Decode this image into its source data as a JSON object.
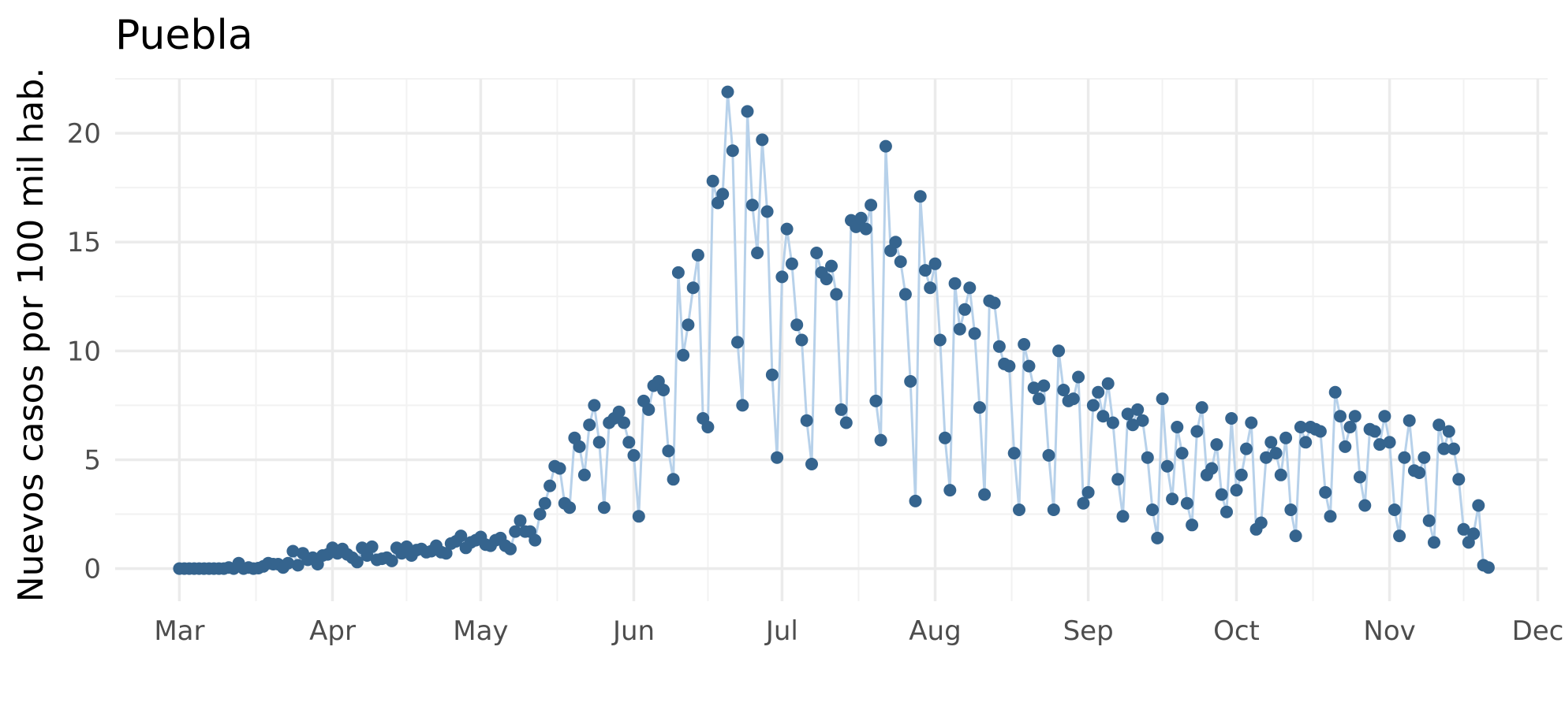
{
  "chart_data": {
    "type": "line",
    "title": "Puebla",
    "xlabel": "",
    "ylabel": "Nuevos casos por 100 mil hab.",
    "x_range": [
      "2020-02-17",
      "2020-12-03"
    ],
    "xlim_label": "Mar–Dec 2020",
    "ylim": [
      -1.5,
      22.5
    ],
    "x_tick_labels": [
      "Mar",
      "Apr",
      "May",
      "Jun",
      "Jul",
      "Aug",
      "Sep",
      "Oct",
      "Nov",
      "Dec"
    ],
    "x_tick_dates": [
      "2020-03-01",
      "2020-04-01",
      "2020-05-01",
      "2020-06-01",
      "2020-07-01",
      "2020-08-01",
      "2020-09-01",
      "2020-10-01",
      "2020-11-01",
      "2020-12-01"
    ],
    "y_ticks": [
      0,
      5,
      10,
      15,
      20
    ],
    "grid": true,
    "legend": "none",
    "colors": {
      "line": "#b7d1ea",
      "points": "#35648e",
      "grid_major": "#ebebeb",
      "grid_minor": "#f2f2f2"
    },
    "series": [
      {
        "start_date": "2020-03-01",
        "interval": "daily",
        "values": [
          0,
          0,
          0,
          0,
          0,
          0,
          0,
          0,
          0,
          0,
          0.05,
          0,
          0.25,
          0,
          0.05,
          0,
          0.02,
          0.1,
          0.25,
          0.2,
          0.2,
          0.05,
          0.25,
          0.8,
          0.15,
          0.7,
          0.4,
          0.5,
          0.2,
          0.6,
          0.65,
          0.95,
          0.7,
          0.9,
          0.65,
          0.5,
          0.3,
          0.95,
          0.6,
          1.0,
          0.4,
          0.45,
          0.5,
          0.35,
          0.95,
          0.7,
          1.0,
          0.6,
          0.85,
          0.9,
          0.75,
          0.8,
          1.05,
          0.75,
          0.7,
          1.15,
          1.25,
          1.5,
          0.95,
          1.2,
          1.3,
          1.45,
          1.1,
          1.05,
          1.3,
          1.4,
          1.05,
          0.9,
          1.7,
          2.2,
          1.7,
          1.7,
          1.3,
          2.5,
          3.0,
          3.8,
          4.7,
          4.6,
          3.0,
          2.8,
          6.0,
          5.6,
          4.3,
          6.6,
          7.5,
          5.8,
          2.8,
          6.7,
          6.9,
          7.2,
          6.7,
          5.8,
          5.2,
          2.4,
          7.7,
          7.3,
          8.4,
          8.6,
          8.2,
          5.4,
          4.1,
          13.6,
          9.8,
          11.2,
          12.9,
          14.4,
          6.9,
          6.5,
          17.8,
          16.8,
          17.2,
          21.9,
          19.2,
          10.4,
          7.5,
          21.0,
          16.7,
          14.5,
          19.7,
          16.4,
          8.9,
          5.1,
          13.4,
          15.6,
          14.0,
          11.2,
          10.5,
          6.8,
          4.8,
          14.5,
          13.6,
          13.3,
          13.9,
          12.6,
          7.3,
          6.7,
          16.0,
          15.7,
          16.1,
          15.6,
          16.7,
          7.7,
          5.9,
          19.4,
          14.6,
          15.0,
          14.1,
          12.6,
          8.6,
          3.1,
          17.1,
          13.7,
          12.9,
          14.0,
          10.5,
          6.0,
          3.6,
          13.1,
          11.0,
          11.9,
          12.9,
          10.8,
          7.4,
          3.4,
          12.3,
          12.2,
          10.2,
          9.4,
          9.3,
          5.3,
          2.7,
          10.3,
          9.3,
          8.3,
          7.8,
          8.4,
          5.2,
          2.7,
          10.0,
          8.2,
          7.7,
          7.8,
          8.8,
          3.0,
          3.5,
          7.5,
          8.1,
          7.0,
          8.5,
          6.7,
          4.1,
          2.4,
          7.1,
          6.6,
          7.3,
          6.8,
          5.1,
          2.7,
          1.4,
          7.8,
          4.7,
          3.2,
          6.5,
          5.3,
          3.0,
          2.0,
          6.3,
          7.4,
          4.3,
          4.6,
          5.7,
          3.4,
          2.6,
          6.9,
          3.6,
          4.3,
          5.5,
          6.7,
          1.8,
          2.1,
          5.1,
          5.8,
          5.3,
          4.3,
          6.0,
          2.7,
          1.5,
          6.5,
          5.8,
          6.5,
          6.4,
          6.3,
          3.5,
          2.4,
          8.1,
          7.0,
          5.6,
          6.5,
          7.0,
          4.2,
          2.9,
          6.4,
          6.3,
          5.7,
          7.0,
          5.8,
          2.7,
          1.5,
          5.1,
          6.8,
          4.5,
          4.4,
          5.1,
          2.2,
          1.2,
          6.6,
          5.5,
          6.3,
          5.5,
          4.1,
          1.8,
          1.2,
          1.6,
          2.9,
          0.15,
          0.05
        ]
      }
    ]
  }
}
